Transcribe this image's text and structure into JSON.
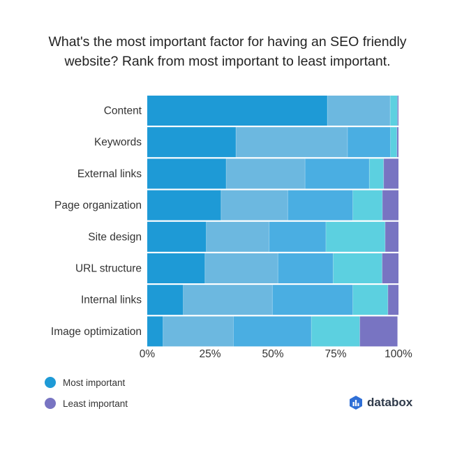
{
  "title_lines": [
    "What's the most important factor for having an SEO friendly",
    "website? Rank from most important to least important."
  ],
  "brand": {
    "name": "databox",
    "icon": "databox-logo-icon"
  },
  "legend": [
    {
      "label": "Most important",
      "color": "#1e9ad6"
    },
    {
      "label": "Least important",
      "color": "#7874c2"
    }
  ],
  "colors": [
    "#1e9ad6",
    "#6cb8e0",
    "#4aaee2",
    "#5cd0e0",
    "#7874c2"
  ],
  "chart_data": {
    "type": "bar",
    "orientation": "horizontal",
    "stacked": true,
    "categories": [
      "Content",
      "Keywords",
      "External links",
      "Page organization",
      "Site design",
      "URL structure",
      "Internal links",
      "Image optimization"
    ],
    "series": [
      {
        "values": [
          71.7,
          35.3,
          31.4,
          29.4,
          23.5,
          23.0,
          14.3,
          6.3
        ]
      },
      {
        "values": [
          25.0,
          44.4,
          31.4,
          26.5,
          25.0,
          29.0,
          35.5,
          28.0
        ]
      },
      {
        "values": [
          0.0,
          17.1,
          25.6,
          25.9,
          22.6,
          22.0,
          32.0,
          31.0
        ]
      },
      {
        "values": [
          2.9,
          2.6,
          5.7,
          11.8,
          23.6,
          19.5,
          14.0,
          19.3
        ]
      },
      {
        "values": [
          0.4,
          0.6,
          5.9,
          6.4,
          5.3,
          6.5,
          4.2,
          15.0
        ]
      }
    ],
    "xlim": [
      0,
      100
    ],
    "xticks": [
      "0%",
      "25%",
      "50%",
      "75%",
      "100%"
    ],
    "grid": false,
    "legend": "bottom-left"
  }
}
